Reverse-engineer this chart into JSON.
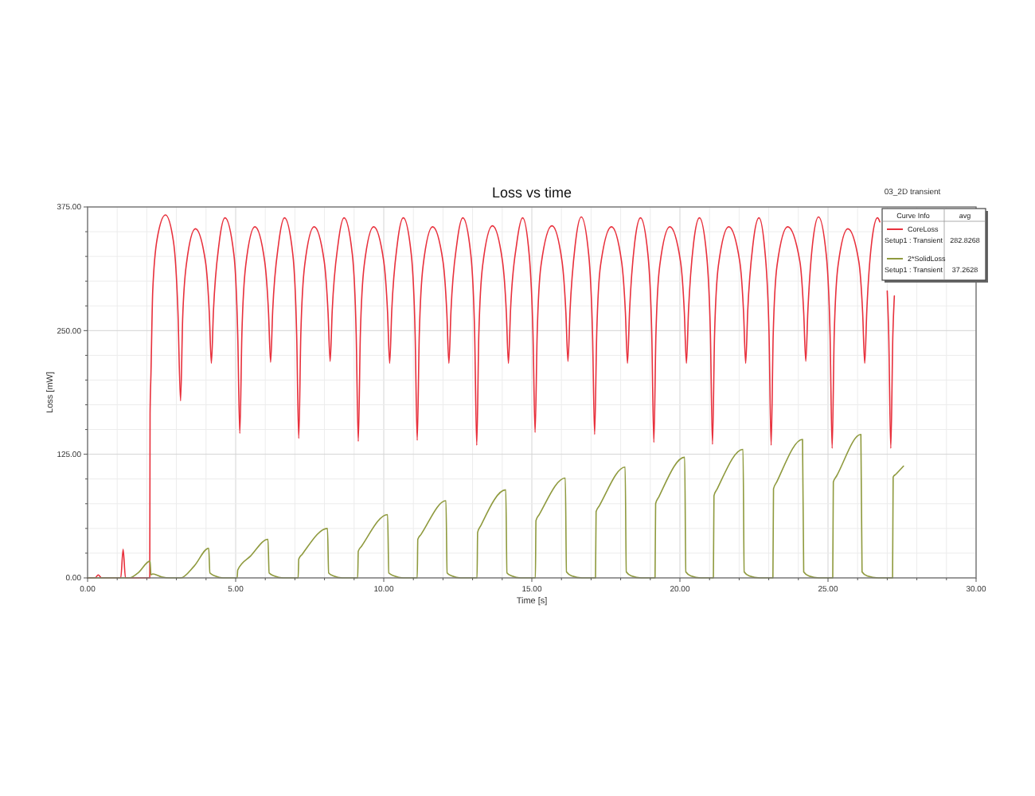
{
  "chart_data": {
    "type": "line",
    "title": "Loss vs time",
    "subtitle": "03_2D transient",
    "xlabel": "Time [s]",
    "ylabel": "Loss [mW]",
    "legend_title": "Curve Info",
    "annotations": [
      "avg",
      "Setup1 : Transient",
      "282.8268",
      "Setup1 : Transient",
      "37.2628"
    ],
    "xlim": [
      0,
      30
    ],
    "ylim": [
      0,
      375
    ],
    "xticks": [
      {
        "value": 0,
        "label": "0.00"
      },
      {
        "value": 1,
        "label": null
      },
      {
        "value": 2,
        "label": null
      },
      {
        "value": 3,
        "label": null
      },
      {
        "value": 4,
        "label": null
      },
      {
        "value": 5,
        "label": "5.00"
      },
      {
        "value": 6,
        "label": null
      },
      {
        "value": 7,
        "label": null
      },
      {
        "value": 8,
        "label": null
      },
      {
        "value": 9,
        "label": null
      },
      {
        "value": 10,
        "label": "10.00"
      },
      {
        "value": 11,
        "label": null
      },
      {
        "value": 12,
        "label": null
      },
      {
        "value": 13,
        "label": null
      },
      {
        "value": 14,
        "label": null
      },
      {
        "value": 15,
        "label": "15.00"
      },
      {
        "value": 16,
        "label": null
      },
      {
        "value": 17,
        "label": null
      },
      {
        "value": 18,
        "label": null
      },
      {
        "value": 19,
        "label": null
      },
      {
        "value": 20,
        "label": "20.00"
      },
      {
        "value": 21,
        "label": null
      },
      {
        "value": 22,
        "label": null
      },
      {
        "value": 23,
        "label": null
      },
      {
        "value": 24,
        "label": null
      },
      {
        "value": 25,
        "label": "25.00"
      },
      {
        "value": 26,
        "label": null
      },
      {
        "value": 27,
        "label": null
      },
      {
        "value": 28,
        "label": null
      },
      {
        "value": 29,
        "label": null
      },
      {
        "value": 30,
        "label": "30.00"
      }
    ],
    "yticks": [
      {
        "value": 0,
        "label": "0.00"
      },
      {
        "value": 25,
        "label": null
      },
      {
        "value": 50,
        "label": null
      },
      {
        "value": 75,
        "label": null
      },
      {
        "value": 100,
        "label": null
      },
      {
        "value": 125,
        "label": "125.00"
      },
      {
        "value": 150,
        "label": null
      },
      {
        "value": 175,
        "label": null
      },
      {
        "value": 200,
        "label": null
      },
      {
        "value": 225,
        "label": null
      },
      {
        "value": 250,
        "label": "250.00"
      },
      {
        "value": 275,
        "label": null
      },
      {
        "value": 300,
        "label": null
      },
      {
        "value": 325,
        "label": null
      },
      {
        "value": 350,
        "label": null
      },
      {
        "value": 375,
        "label": "375.00"
      }
    ],
    "grid": true,
    "legend": "top right",
    "series": [
      {
        "name": "CoreLoss",
        "color": "#e8303c",
        "x": [
          0,
          0.25,
          0.36,
          0.48,
          1.12,
          1.2,
          1.28,
          2.1,
          2.11,
          2.14,
          2.2,
          2.35,
          2.63,
          2.9,
          3.05,
          3.14,
          3.21,
          3.34,
          3.64,
          3.98,
          4.11,
          4.18,
          4.25,
          4.44,
          4.64,
          4.94,
          5.07,
          5.14,
          5.21,
          5.34,
          5.65,
          5.98,
          6.11,
          6.18,
          6.25,
          6.45,
          6.65,
          6.93,
          7.06,
          7.13,
          7.2,
          7.33,
          7.65,
          7.99,
          8.12,
          8.19,
          8.26,
          8.46,
          8.66,
          8.94,
          9.07,
          9.14,
          9.21,
          9.34,
          9.66,
          10,
          10.13,
          10.2,
          10.27,
          10.46,
          10.66,
          10.93,
          11.06,
          11.13,
          11.2,
          11.33,
          11.65,
          12,
          12.13,
          12.2,
          12.27,
          12.47,
          12.67,
          12.94,
          13.07,
          13.14,
          13.21,
          13.34,
          13.67,
          14.01,
          14.14,
          14.21,
          14.28,
          14.49,
          14.69,
          14.91,
          15.04,
          15.11,
          15.18,
          15.31,
          15.68,
          16.02,
          16.15,
          16.22,
          16.29,
          16.47,
          16.67,
          16.92,
          17.05,
          17.12,
          17.19,
          17.32,
          17.69,
          18.03,
          18.16,
          18.23,
          18.3,
          18.47,
          18.67,
          18.92,
          19.05,
          19.12,
          19.19,
          19.32,
          19.66,
          20.02,
          20.15,
          20.22,
          20.29,
          20.46,
          20.66,
          20.9,
          21.03,
          21.1,
          21.17,
          21.3,
          21.65,
          22.02,
          22.15,
          22.22,
          22.29,
          22.47,
          22.67,
          22.88,
          23.01,
          23.08,
          23.15,
          23.28,
          23.64,
          24.05,
          24.18,
          24.25,
          24.32,
          24.48,
          24.68,
          24.94,
          25.07,
          25.14,
          25.21,
          25.34,
          25.67,
          26.04,
          26.17,
          26.24,
          26.31,
          26.47,
          26.67,
          26.75,
          26.9,
          27,
          27.05,
          27.12,
          27.19,
          27.24
        ],
        "values": [
          0,
          0,
          3,
          0,
          0,
          29,
          0,
          0,
          166,
          206,
          290,
          343,
          367,
          340,
          270,
          179,
          262,
          318,
          353,
          320,
          268,
          217,
          270,
          338,
          364,
          327,
          246,
          146,
          246,
          316,
          355,
          320,
          268,
          218,
          270,
          338,
          364,
          327,
          246,
          141,
          246,
          316,
          355,
          320,
          268,
          219,
          270,
          338,
          364,
          327,
          246,
          138,
          246,
          316,
          355,
          320,
          268,
          217,
          270,
          338,
          364,
          327,
          246,
          139,
          246,
          316,
          355,
          320,
          268,
          217,
          270,
          338,
          364,
          327,
          246,
          134,
          246,
          316,
          356,
          320,
          268,
          217,
          270,
          338,
          364,
          327,
          246,
          147,
          246,
          316,
          356,
          320,
          268,
          219,
          270,
          338,
          365,
          327,
          246,
          145,
          246,
          316,
          355,
          320,
          268,
          217,
          270,
          338,
          364,
          327,
          246,
          137,
          246,
          316,
          355,
          320,
          268,
          217,
          270,
          338,
          364,
          327,
          246,
          135,
          246,
          316,
          355,
          320,
          268,
          217,
          270,
          338,
          364,
          327,
          246,
          134,
          246,
          316,
          355,
          320,
          268,
          219,
          270,
          338,
          365,
          327,
          246,
          131,
          246,
          316,
          353,
          320,
          268,
          217,
          270,
          338,
          364,
          360,
          null,
          290,
          246,
          131,
          246,
          285
        ]
      },
      {
        "name": "2*SolidLoss",
        "color": "#8f9a3e",
        "x": [
          0,
          1.4,
          1.7,
          2.11,
          2.14,
          2.2,
          2.5,
          2.8,
          3.14,
          3.6,
          4.09,
          4.13,
          4.3,
          4.57,
          5.05,
          5.07,
          5.5,
          6.09,
          6.13,
          6.3,
          6.6,
          7.11,
          7.13,
          7.25,
          8.1,
          8.14,
          8.3,
          8.6,
          9.12,
          9.14,
          9.25,
          10.13,
          10.17,
          10.35,
          10.65,
          11.13,
          11.15,
          11.26,
          12.1,
          12.14,
          12.3,
          12.6,
          13.15,
          13.17,
          13.28,
          14.12,
          14.16,
          14.32,
          14.62,
          15.12,
          15.14,
          15.25,
          16.13,
          16.17,
          16.35,
          16.7,
          17.15,
          17.17,
          17.28,
          18.15,
          18.19,
          18.36,
          18.7,
          19.16,
          19.18,
          19.29,
          20.16,
          20.2,
          20.37,
          20.7,
          21.13,
          21.15,
          21.26,
          22.13,
          22.17,
          22.34,
          22.7,
          23.14,
          23.16,
          23.27,
          24.14,
          24.18,
          24.35,
          24.7,
          25.16,
          25.18,
          25.29,
          26.11,
          26.15,
          26.32,
          26.7,
          27.18,
          27.2,
          27.3,
          27.55
        ],
        "values": [
          0,
          0,
          5,
          17,
          3,
          4,
          1,
          0,
          0,
          12,
          30,
          5,
          2,
          0,
          0,
          8,
          22,
          39,
          5,
          2,
          0,
          0,
          19,
          24,
          50,
          5,
          2,
          0,
          0,
          27,
          32,
          64,
          5,
          2,
          0,
          0,
          39,
          44,
          78,
          5,
          2,
          0,
          0,
          46,
          53,
          89,
          5,
          2,
          0,
          0,
          58,
          64,
          101,
          6,
          2,
          0,
          0,
          67,
          73,
          112,
          6,
          2,
          0,
          0,
          75,
          82,
          122,
          6,
          2,
          0,
          0,
          83,
          90,
          130,
          6,
          2,
          0,
          0,
          90,
          97,
          140,
          6,
          2,
          0,
          0,
          97,
          103,
          145,
          6,
          2,
          0,
          0,
          102,
          105,
          113
        ]
      }
    ]
  }
}
